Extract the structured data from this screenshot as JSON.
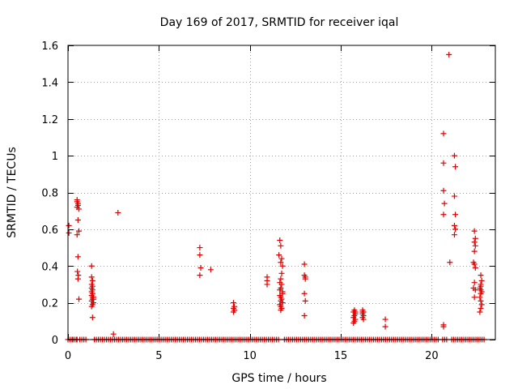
{
  "chart_data": {
    "type": "scatter",
    "title": "Day 169 of 2017, SRMTID for receiver iqal",
    "xlabel": "GPS time / hours",
    "ylabel": "SRMTID / TECUs",
    "xlim": [
      0,
      23.5
    ],
    "ylim": [
      0,
      1.6
    ],
    "grid": true,
    "marker": "+",
    "marker_color": "#e00000",
    "xticks": [
      0,
      5,
      10,
      15,
      20
    ],
    "xtick_labels": [
      "0",
      "5",
      "10",
      "15",
      "20"
    ],
    "yticks": [
      0,
      0.2,
      0.4,
      0.6,
      0.8,
      1.0,
      1.2,
      1.4,
      1.6
    ],
    "ytick_labels": [
      "0",
      "0.2",
      "0.4",
      "0.6",
      "0.8",
      "1",
      "1.2",
      "1.4",
      "1.6"
    ],
    "zero_baseline": {
      "y": 0.0,
      "x_ranges": [
        [
          0.0,
          0.5
        ],
        [
          0.65,
          1.05
        ],
        [
          1.45,
          11.65
        ],
        [
          11.9,
          20.4
        ],
        [
          20.6,
          20.9
        ],
        [
          21.1,
          22.9
        ]
      ]
    },
    "series": [
      {
        "name": "SRMTID",
        "x": [
          0.05,
          0.05,
          0.25,
          0.5,
          0.5,
          0.55,
          0.55,
          0.5,
          0.6,
          0.55,
          0.6,
          0.5,
          0.55,
          0.52,
          0.57,
          0.55,
          0.6,
          0.5,
          1.3,
          1.3,
          1.35,
          1.3,
          1.35,
          1.3,
          1.35,
          1.3,
          1.35,
          1.3,
          1.4,
          1.35,
          1.3,
          1.4,
          1.35,
          1.3,
          1.35,
          1.4,
          1.35,
          2.5,
          2.75,
          7.25,
          7.25,
          7.3,
          7.25,
          7.85,
          9.1,
          9.15,
          9.1,
          9.15,
          9.1,
          10.95,
          10.95,
          10.95,
          11.65,
          11.7,
          11.6,
          11.75,
          11.7,
          11.8,
          11.75,
          11.7,
          11.65,
          11.75,
          11.7,
          11.8,
          11.65,
          11.7,
          11.75,
          11.7,
          11.8,
          11.65,
          11.7,
          11.75,
          11.7,
          11.8,
          11.65,
          13.0,
          13.0,
          13.05,
          13.0,
          13.05,
          13.0,
          13.05,
          15.75,
          15.7,
          15.8,
          15.75,
          15.7,
          15.8,
          15.75,
          15.7,
          15.8,
          16.2,
          16.25,
          16.2,
          16.25,
          16.2,
          16.25,
          16.2,
          17.45,
          17.45,
          20.65,
          20.65,
          20.65,
          20.7,
          20.65,
          20.65,
          20.65,
          20.95,
          21.0,
          21.25,
          21.3,
          21.25,
          21.3,
          21.25,
          21.3,
          21.25,
          22.35,
          22.4,
          22.35,
          22.4,
          22.35,
          22.3,
          22.35,
          22.4,
          22.35,
          22.3,
          22.4,
          22.35,
          22.7,
          22.75,
          22.7,
          22.65,
          22.7,
          22.75,
          22.7,
          22.65,
          22.7,
          22.75,
          22.7,
          22.65,
          22.7
        ],
        "y": [
          0.62,
          0.58,
          0.0,
          0.76,
          0.75,
          0.74,
          0.73,
          0.72,
          0.71,
          0.65,
          0.59,
          0.57,
          0.45,
          0.37,
          0.35,
          0.33,
          0.22,
          0.0,
          0.4,
          0.34,
          0.32,
          0.3,
          0.29,
          0.28,
          0.27,
          0.26,
          0.25,
          0.24,
          0.23,
          0.22,
          0.21,
          0.2,
          0.19,
          0.18,
          0.12,
          0.22,
          0.23,
          0.03,
          0.69,
          0.5,
          0.46,
          0.39,
          0.35,
          0.38,
          0.2,
          0.18,
          0.17,
          0.16,
          0.15,
          0.34,
          0.32,
          0.3,
          0.54,
          0.51,
          0.46,
          0.44,
          0.42,
          0.4,
          0.36,
          0.33,
          0.31,
          0.3,
          0.28,
          0.26,
          0.24,
          0.23,
          0.22,
          0.21,
          0.2,
          0.19,
          0.18,
          0.17,
          0.16,
          0.25,
          0.27,
          0.41,
          0.35,
          0.33,
          0.25,
          0.21,
          0.13,
          0.34,
          0.16,
          0.15,
          0.14,
          0.13,
          0.12,
          0.11,
          0.1,
          0.09,
          0.15,
          0.16,
          0.15,
          0.14,
          0.13,
          0.12,
          0.11,
          0.15,
          0.11,
          0.07,
          1.12,
          0.96,
          0.81,
          0.74,
          0.68,
          0.07,
          0.08,
          1.55,
          0.42,
          1.0,
          0.94,
          0.78,
          0.68,
          0.62,
          0.6,
          0.57,
          0.59,
          0.55,
          0.53,
          0.51,
          0.48,
          0.42,
          0.41,
          0.39,
          0.31,
          0.28,
          0.27,
          0.23,
          0.35,
          0.32,
          0.3,
          0.28,
          0.27,
          0.26,
          0.25,
          0.23,
          0.21,
          0.19,
          0.17,
          0.15,
          0.29
        ]
      }
    ]
  }
}
